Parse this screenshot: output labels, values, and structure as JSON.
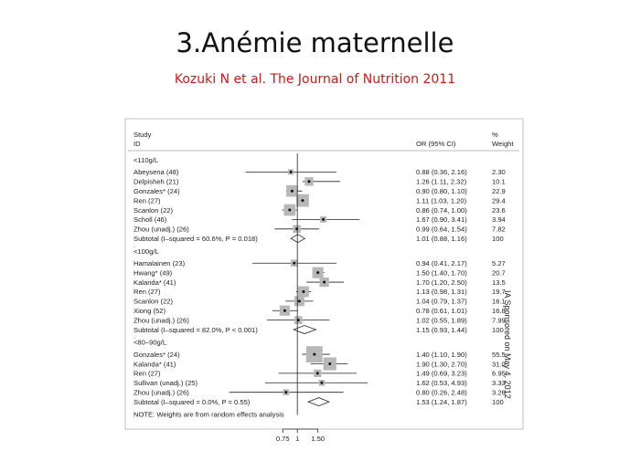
{
  "slide": {
    "title": "3.Anémie maternelle",
    "subtitle": "Kozuki N et al. The Journal of Nutrition 2011",
    "side_note": "IA Sponsored on May 4, 2012"
  },
  "chart_data": {
    "type": "forest",
    "headers": {
      "study": "Study",
      "id": "ID",
      "or": "OR (95% CI)",
      "pct": "%",
      "weight": "Weight"
    },
    "x_ticks": [
      {
        "value": 0.75,
        "label": "0.75"
      },
      {
        "value": 1,
        "label": "1"
      },
      {
        "value": 1.5,
        "label": "1.50"
      }
    ],
    "xlim": [
      0.2,
      4.0
    ],
    "xscale": "log",
    "note": "NOTE: Weights are from random effects analysis",
    "groups": [
      {
        "label": "<110g/L",
        "studies": [
          {
            "name": "Abeysena (48)",
            "or": 0.88,
            "lo": 0.36,
            "hi": 2.16,
            "ci_text": "0.88 (0.36, 2.16)",
            "weight": "2.30"
          },
          {
            "name": "Delpisheh (21)",
            "or": 1.26,
            "lo": 1.11,
            "hi": 2.32,
            "ci_text": "1.26 (1.11, 2.32)",
            "weight": "10.1"
          },
          {
            "name": "Gonzales* (24)",
            "or": 0.9,
            "lo": 0.8,
            "hi": 1.1,
            "ci_text": "0.90 (0.80, 1.10)",
            "weight": "22.9"
          },
          {
            "name": "Ren (27)",
            "or": 1.11,
            "lo": 1.03,
            "hi": 1.2,
            "ci_text": "1.11 (1.03, 1.20)",
            "weight": "29.4"
          },
          {
            "name": "Scanlon (22)",
            "or": 0.86,
            "lo": 0.74,
            "hi": 1.0,
            "ci_text": "0.86 (0.74, 1.00)",
            "weight": "23.6"
          },
          {
            "name": "Scholl (46)",
            "or": 1.67,
            "lo": 0.9,
            "hi": 3.41,
            "ci_text": "1.67 (0.90, 3.41)",
            "weight": "3.94"
          },
          {
            "name": "Zhou (unadj.) (26)",
            "or": 0.99,
            "lo": 0.64,
            "hi": 1.54,
            "ci_text": "0.99 (0.64, 1.54)",
            "weight": "7.82"
          }
        ],
        "subtotal": {
          "label": "Subtotal  (I–squared = 60.6%, P = 0.018)",
          "or": 1.01,
          "lo": 0.88,
          "hi": 1.16,
          "ci_text": "1.01 (0.88, 1.16)",
          "weight": "100"
        }
      },
      {
        "label": "<100g/L",
        "studies": [
          {
            "name": "Hamalainen (23)",
            "or": 0.94,
            "lo": 0.41,
            "hi": 2.17,
            "ci_text": "0.94 (0.41, 2.17)",
            "weight": "5.27"
          },
          {
            "name": "Hwang* (49)",
            "or": 1.5,
            "lo": 1.4,
            "hi": 1.7,
            "ci_text": "1.50 (1.40, 1.70)",
            "weight": "20.7"
          },
          {
            "name": "Kalanda* (41)",
            "or": 1.7,
            "lo": 1.2,
            "hi": 2.5,
            "ci_text": "1.70 (1.20, 2.50)",
            "weight": "13.5"
          },
          {
            "name": "Ren (27)",
            "or": 1.13,
            "lo": 0.98,
            "hi": 1.31,
            "ci_text": "1.13 (0.98, 1.31)",
            "weight": "19.7"
          },
          {
            "name": "Scanlon (22)",
            "or": 1.04,
            "lo": 0.79,
            "hi": 1.37,
            "ci_text": "1.04 (0.79, 1.37)",
            "weight": "16.1"
          },
          {
            "name": "Xiong (52)",
            "or": 0.78,
            "lo": 0.61,
            "hi": 1.01,
            "ci_text": "0.78 (0.61, 1.01)",
            "weight": "16.8"
          },
          {
            "name": "Zhou (unadj.) (26)",
            "or": 1.02,
            "lo": 0.55,
            "hi": 1.89,
            "ci_text": "1.02 (0.55, 1.89)",
            "weight": "7.99"
          }
        ],
        "subtotal": {
          "label": "Subtotal  (I–squared = 82.0%, P < 0.001)",
          "or": 1.15,
          "lo": 0.93,
          "hi": 1.44,
          "ci_text": "1.15 (0.93, 1.44)",
          "weight": "100"
        }
      },
      {
        "label": "<80–90g/L",
        "studies": [
          {
            "name": "Gonzales* (24)",
            "or": 1.4,
            "lo": 1.1,
            "hi": 1.9,
            "ci_text": "1.40 (1.10, 1.90)",
            "weight": "55.5"
          },
          {
            "name": "Kalanda* (41)",
            "or": 1.9,
            "lo": 1.3,
            "hi": 2.7,
            "ci_text": "1.90 (1.30, 2.70)",
            "weight": "31.0"
          },
          {
            "name": "Ren (27)",
            "or": 1.49,
            "lo": 0.69,
            "hi": 3.23,
            "ci_text": "1.49 (0.69, 3.23)",
            "weight": "6.95"
          },
          {
            "name": "Sullivan (unadj.) (25)",
            "or": 1.62,
            "lo": 0.53,
            "hi": 4.93,
            "ci_text": "1.62 (0.53, 4.93)",
            "weight": "3.33"
          },
          {
            "name": "Zhou (unadj.) (26)",
            "or": 0.8,
            "lo": 0.26,
            "hi": 2.48,
            "ci_text": "0.80 (0.26, 2.48)",
            "weight": "3.26"
          }
        ],
        "subtotal": {
          "label": "Subtotal  (I–squared = 0.0%, P = 0.55)",
          "or": 1.53,
          "lo": 1.24,
          "hi": 1.87,
          "ci_text": "1.53 (1.24, 1.87)",
          "weight": "100"
        }
      }
    ]
  }
}
